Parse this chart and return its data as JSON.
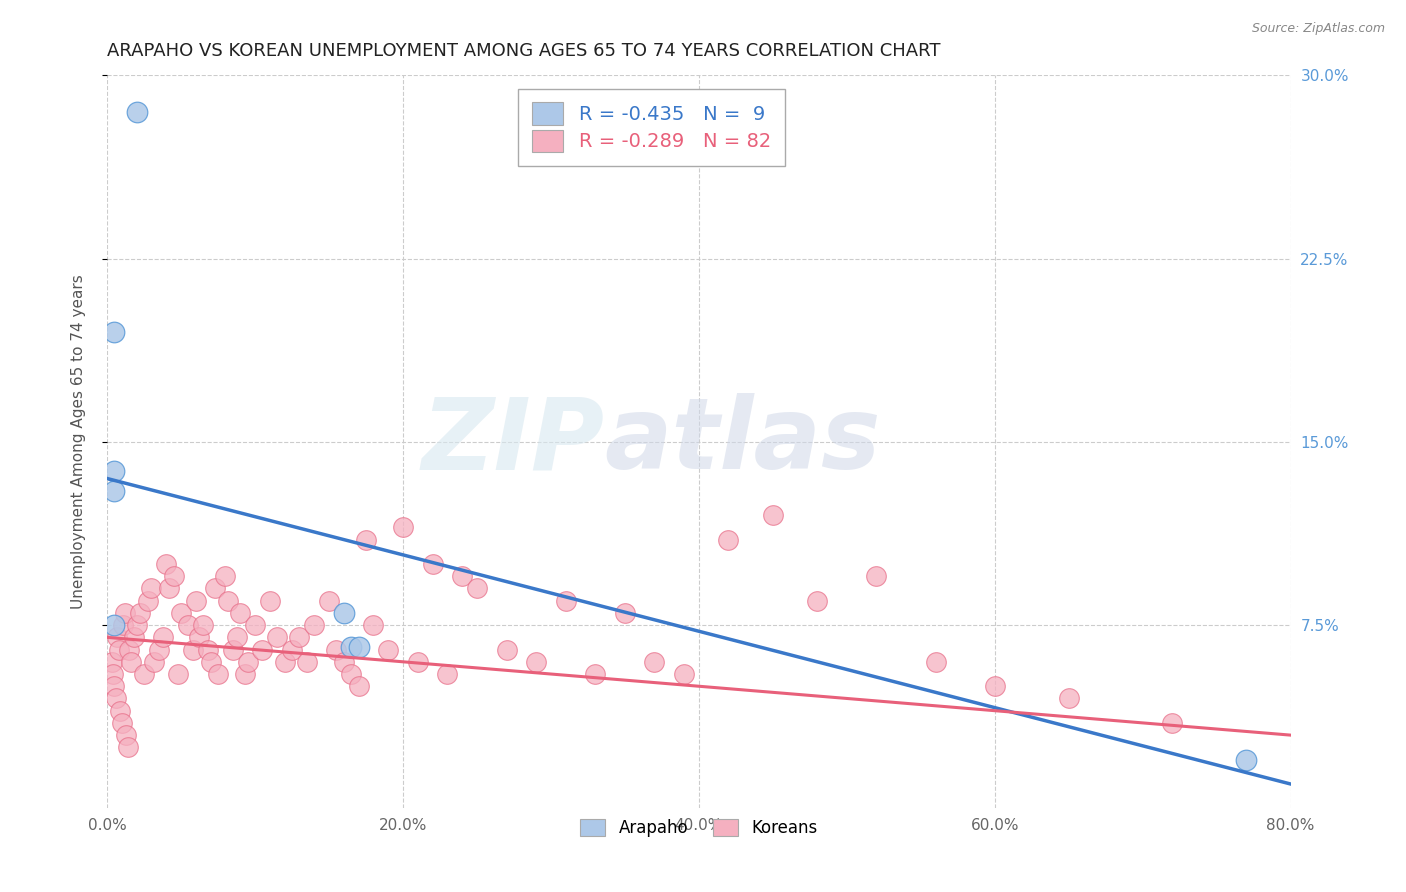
{
  "title": "ARAPAHO VS KOREAN UNEMPLOYMENT AMONG AGES 65 TO 74 YEARS CORRELATION CHART",
  "source": "Source: ZipAtlas.com",
  "ylabel": "Unemployment Among Ages 65 to 74 years",
  "xlim": [
    0,
    0.8
  ],
  "ylim": [
    0,
    0.3
  ],
  "xtick_vals": [
    0.0,
    0.2,
    0.4,
    0.6,
    0.8
  ],
  "xtick_labels": [
    "0.0%",
    "20.0%",
    "40.0%",
    "60.0%",
    "80.0%"
  ],
  "ytick_vals": [
    0.075,
    0.15,
    0.225,
    0.3
  ],
  "ytick_labels_right": [
    "7.5%",
    "15.0%",
    "22.5%",
    "30.0%"
  ],
  "arapaho_x": [
    0.02,
    0.005,
    0.005,
    0.005,
    0.005,
    0.16,
    0.165,
    0.17,
    0.77
  ],
  "arapaho_y": [
    0.285,
    0.195,
    0.138,
    0.13,
    0.075,
    0.08,
    0.066,
    0.066,
    0.02
  ],
  "korean_x": [
    0.003,
    0.004,
    0.005,
    0.006,
    0.007,
    0.008,
    0.009,
    0.01,
    0.011,
    0.012,
    0.013,
    0.014,
    0.015,
    0.016,
    0.018,
    0.02,
    0.022,
    0.025,
    0.028,
    0.03,
    0.032,
    0.035,
    0.038,
    0.04,
    0.042,
    0.045,
    0.048,
    0.05,
    0.055,
    0.058,
    0.06,
    0.062,
    0.065,
    0.068,
    0.07,
    0.073,
    0.075,
    0.08,
    0.082,
    0.085,
    0.088,
    0.09,
    0.093,
    0.095,
    0.1,
    0.105,
    0.11,
    0.115,
    0.12,
    0.125,
    0.13,
    0.135,
    0.14,
    0.15,
    0.155,
    0.16,
    0.165,
    0.17,
    0.175,
    0.18,
    0.19,
    0.2,
    0.21,
    0.22,
    0.23,
    0.24,
    0.25,
    0.27,
    0.29,
    0.31,
    0.33,
    0.35,
    0.37,
    0.39,
    0.42,
    0.45,
    0.48,
    0.52,
    0.56,
    0.6,
    0.65,
    0.72
  ],
  "korean_y": [
    0.06,
    0.055,
    0.05,
    0.045,
    0.07,
    0.065,
    0.04,
    0.035,
    0.075,
    0.08,
    0.03,
    0.025,
    0.065,
    0.06,
    0.07,
    0.075,
    0.08,
    0.055,
    0.085,
    0.09,
    0.06,
    0.065,
    0.07,
    0.1,
    0.09,
    0.095,
    0.055,
    0.08,
    0.075,
    0.065,
    0.085,
    0.07,
    0.075,
    0.065,
    0.06,
    0.09,
    0.055,
    0.095,
    0.085,
    0.065,
    0.07,
    0.08,
    0.055,
    0.06,
    0.075,
    0.065,
    0.085,
    0.07,
    0.06,
    0.065,
    0.07,
    0.06,
    0.075,
    0.085,
    0.065,
    0.06,
    0.055,
    0.05,
    0.11,
    0.075,
    0.065,
    0.115,
    0.06,
    0.1,
    0.055,
    0.095,
    0.09,
    0.065,
    0.06,
    0.085,
    0.055,
    0.08,
    0.06,
    0.055,
    0.11,
    0.12,
    0.085,
    0.095,
    0.06,
    0.05,
    0.045,
    0.035
  ],
  "arapaho_color": "#adc8e8",
  "korean_color": "#f5b0c0",
  "arapaho_line_color": "#3a78c9",
  "korean_line_color": "#e8607a",
  "arapaho_edge_color": "#5a9ad8",
  "korean_edge_color": "#e8708a",
  "R_arapaho": -0.435,
  "N_arapaho": 9,
  "R_korean": -0.289,
  "N_korean": 82,
  "watermark_zip": "ZIP",
  "watermark_atlas": "atlas",
  "background_color": "#ffffff",
  "grid_color": "#cccccc",
  "right_axis_color": "#5a9ad8",
  "title_fontsize": 13,
  "label_fontsize": 11,
  "tick_fontsize": 11,
  "legend_fontsize": 14
}
